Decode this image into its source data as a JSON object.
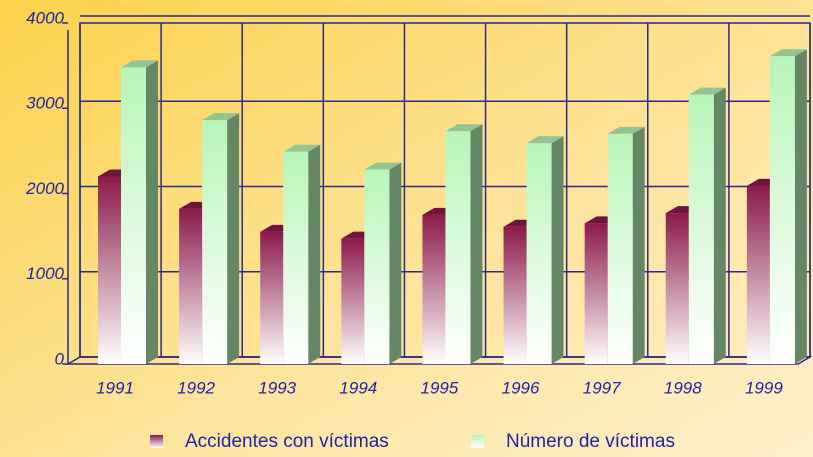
{
  "chart_data": {
    "type": "bar3d",
    "categories": [
      "1991",
      "1992",
      "1993",
      "1994",
      "1995",
      "1996",
      "1997",
      "1998",
      "1999"
    ],
    "series": [
      {
        "name": "Accidentes con víctimas",
        "color": "#8b1a4b",
        "values": [
          2200,
          1820,
          1550,
          1470,
          1750,
          1610,
          1650,
          1770,
          2090
        ]
      },
      {
        "name": "Número de víctimas",
        "color": "#b8f5b8",
        "values": [
          3480,
          2860,
          2490,
          2280,
          2730,
          2590,
          2700,
          3160,
          3610
        ]
      }
    ],
    "ylim": [
      0,
      4000
    ],
    "yticks": [
      0,
      1000,
      2000,
      3000,
      4000
    ],
    "grid": true,
    "legend": "bottom"
  }
}
